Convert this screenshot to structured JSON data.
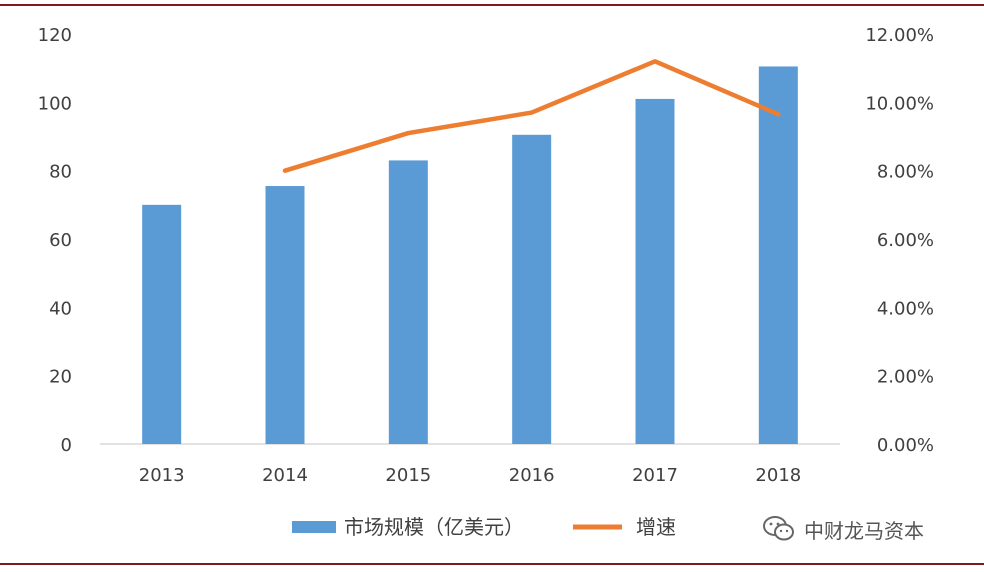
{
  "chart_data": {
    "type": "bar",
    "categories": [
      "2013",
      "2014",
      "2015",
      "2016",
      "2017",
      "2018"
    ],
    "series": [
      {
        "name": "市场规模（亿美元）",
        "type": "bar",
        "axis": "left",
        "color": "#5b9bd5",
        "values": [
          70,
          75.5,
          83,
          90.5,
          101,
          110.5
        ]
      },
      {
        "name": "增速",
        "type": "line",
        "axis": "right",
        "color": "#ed7d31",
        "values": [
          null,
          8.0,
          9.1,
          9.7,
          11.2,
          9.65
        ]
      }
    ],
    "y_left": {
      "min": 0,
      "max": 120,
      "step": 20,
      "ticks": [
        "0",
        "20",
        "40",
        "60",
        "80",
        "100",
        "120"
      ]
    },
    "y_right": {
      "min": 0,
      "max": 12,
      "step": 2,
      "ticks": [
        "0.00%",
        "2.00%",
        "4.00%",
        "6.00%",
        "8.00%",
        "10.00%",
        "12.00%"
      ]
    },
    "grid": false,
    "legend_position": "bottom"
  },
  "watermark": {
    "text": "中财龙马资本",
    "icon": "wechat-icon"
  },
  "colors": {
    "frame_rule": "#7a1c1c",
    "axis": "#d9d9d9",
    "text": "#404040"
  }
}
